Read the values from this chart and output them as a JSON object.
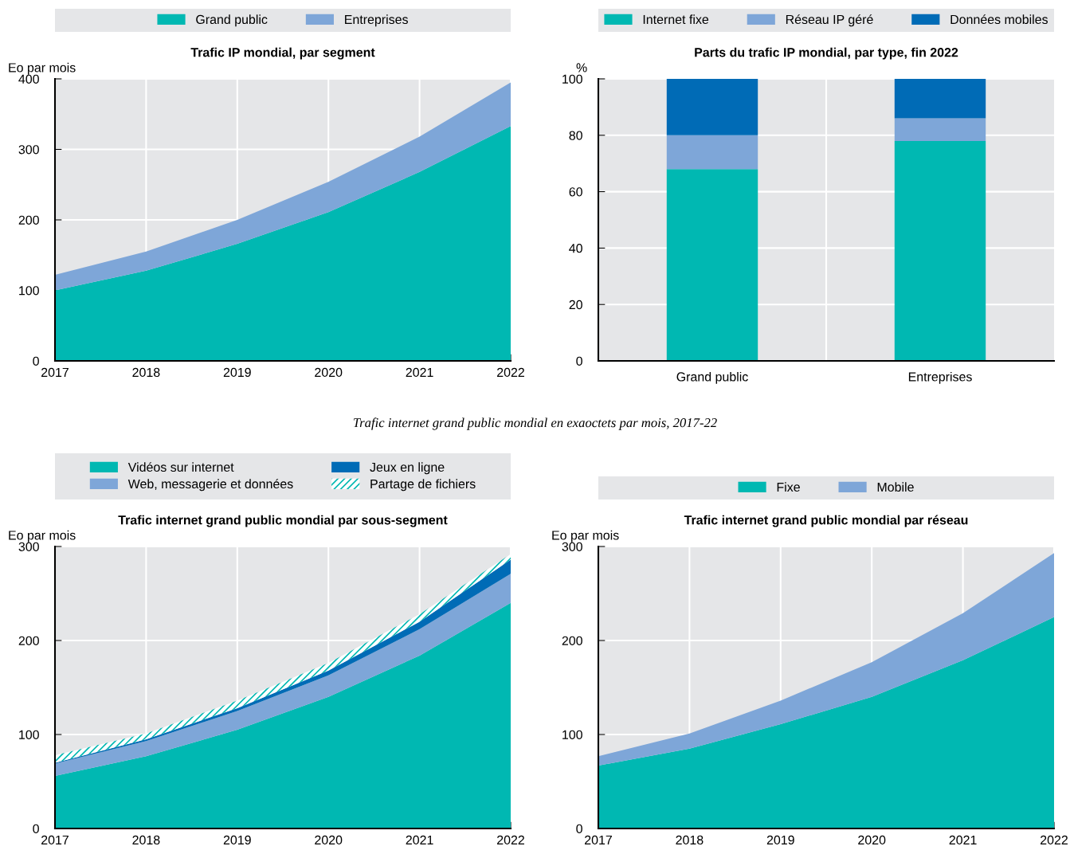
{
  "chart_data": [
    {
      "type": "area",
      "stacked": true,
      "title": "Trafic IP mondial, par segment",
      "ylabel": "Eo par mois",
      "x": [
        2017,
        2018,
        2019,
        2020,
        2021,
        2022
      ],
      "xlim": [
        2017,
        2022
      ],
      "xticks": [
        2017,
        2018,
        2019,
        2020,
        2021,
        2022
      ],
      "ylim": [
        0,
        400
      ],
      "yticks": [
        0,
        100,
        200,
        300,
        400
      ],
      "grid": true,
      "legend": "top",
      "series": [
        {
          "name": "Grand public",
          "color": "#00b8b2",
          "values": [
            100,
            128,
            166,
            211,
            268,
            333
          ]
        },
        {
          "name": "Entreprises",
          "color": "#7ea6d8",
          "values": [
            22,
            27,
            34,
            43,
            50,
            62
          ]
        }
      ]
    },
    {
      "type": "bar",
      "stacked": true,
      "title": "Parts du trafic IP mondial, par type, fin 2022",
      "ylabel": "%",
      "categories": [
        "Grand public",
        "Entreprises"
      ],
      "ylim": [
        0,
        100
      ],
      "yticks": [
        0,
        20,
        40,
        60,
        80,
        100
      ],
      "grid": true,
      "legend": "top",
      "series": [
        {
          "name": "Internet fixe",
          "color": "#00b8b2",
          "values": [
            68,
            78
          ]
        },
        {
          "name": "Réseau IP géré",
          "color": "#7ea6d8",
          "values": [
            12,
            8
          ]
        },
        {
          "name": "Données mobiles",
          "color": "#006bb6",
          "values": [
            20,
            14
          ]
        }
      ]
    },
    {
      "type": "area",
      "stacked": true,
      "title": "Trafic internet grand public mondial par sous-segment",
      "ylabel": "Eo par mois",
      "annotations": [
        "Trafic internet grand public mondial en exaoctets par mois, 2017-22"
      ],
      "x": [
        2017,
        2018,
        2019,
        2020,
        2021,
        2022
      ],
      "xlim": [
        2017,
        2022
      ],
      "xticks": [
        2017,
        2018,
        2019,
        2020,
        2021,
        2022
      ],
      "ylim": [
        0,
        300
      ],
      "yticks": [
        0,
        100,
        200,
        300
      ],
      "grid": true,
      "legend": "top",
      "series": [
        {
          "name": "Vidéos sur internet",
          "color": "#00b8b2",
          "values": [
            56,
            77,
            105,
            140,
            184,
            240
          ]
        },
        {
          "name": "Web, messagerie et données",
          "color": "#7ea6d8",
          "values": [
            13,
            16,
            20,
            23,
            28,
            31
          ]
        },
        {
          "name": "Jeux en ligne",
          "color": "#006bb6",
          "values": [
            1,
            2,
            3,
            5,
            8,
            15
          ]
        },
        {
          "name": "Partage de fichiers",
          "color": "#00b8b2",
          "values": [
            8,
            6,
            8,
            8,
            8,
            6
          ]
        }
      ]
    },
    {
      "type": "area",
      "stacked": true,
      "title": "Trafic internet grand public mondial par réseau",
      "ylabel": "Eo par mois",
      "x": [
        2017,
        2018,
        2019,
        2020,
        2021,
        2022
      ],
      "xlim": [
        2017,
        2022
      ],
      "xticks": [
        2017,
        2018,
        2019,
        2020,
        2021,
        2022
      ],
      "ylim": [
        0,
        300
      ],
      "yticks": [
        0,
        100,
        200,
        300
      ],
      "grid": true,
      "legend": "top",
      "series": [
        {
          "name": "Fixe",
          "color": "#00b8b2",
          "values": [
            67,
            85,
            111,
            140,
            179,
            225
          ]
        },
        {
          "name": "Mobile",
          "color": "#7ea6d8",
          "values": [
            10,
            16,
            25,
            37,
            50,
            68
          ]
        }
      ]
    }
  ]
}
